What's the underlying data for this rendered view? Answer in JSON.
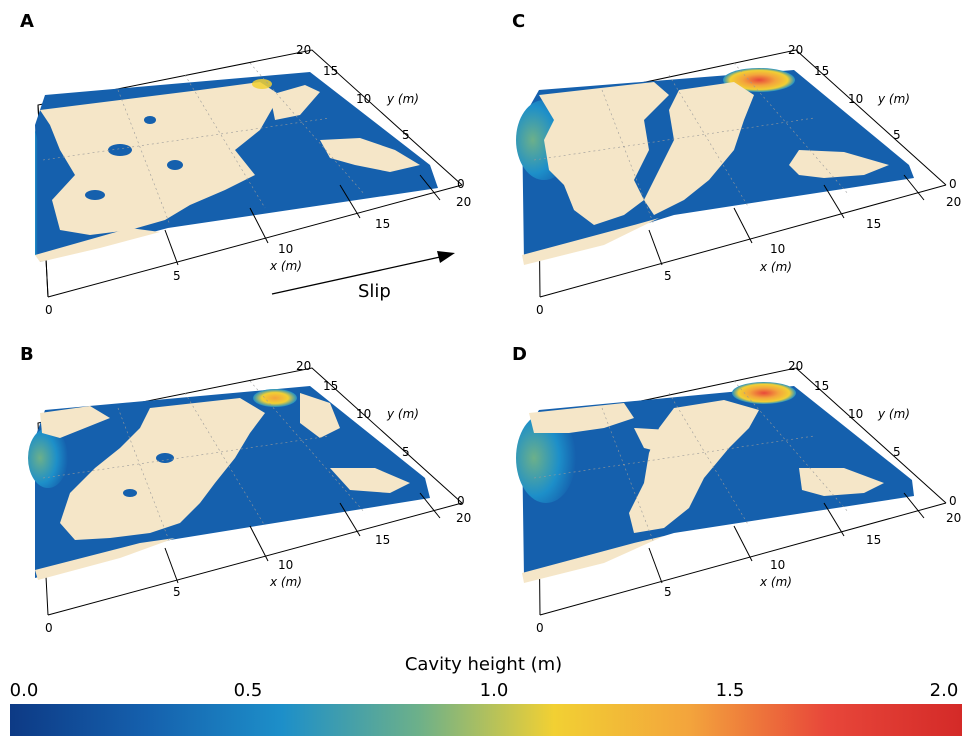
{
  "chart_data": {
    "type": "3d-surface",
    "colorbar": {
      "title": "Cavity height (m)",
      "range": [
        0.0,
        2.0
      ],
      "ticks": [
        "0.0",
        "0.5",
        "1.0",
        "1.5",
        "2.0"
      ],
      "colormap": [
        "#0d3a85",
        "#1560ad",
        "#1d8fc9",
        "#6cb08a",
        "#f2d033",
        "#f3a43c",
        "#e8473a",
        "#d42a28"
      ]
    },
    "contact_color": "#f5e6c8",
    "annotation": "Slip",
    "panels": [
      {
        "label": "A",
        "x_ticks": [
          "0",
          "5",
          "10",
          "15",
          "20"
        ],
        "y_ticks": [
          "0",
          "5",
          "10",
          "15",
          "20"
        ],
        "x_label": "x (m)",
        "y_label": "y (m)",
        "max_cavity_height": 1.4
      },
      {
        "label": "C",
        "x_ticks": [
          "0",
          "5",
          "10",
          "15",
          "20"
        ],
        "y_ticks": [
          "0",
          "5",
          "10",
          "15",
          "20"
        ],
        "x_label": "x (m)",
        "y_label": "y (m)",
        "max_cavity_height": 1.6
      },
      {
        "label": "B",
        "x_ticks": [
          "0",
          "5",
          "10",
          "15",
          "20"
        ],
        "y_ticks": [
          "0",
          "5",
          "10",
          "15",
          "20"
        ],
        "x_label": "x (m)",
        "y_label": "y (m)",
        "max_cavity_height": 1.4
      },
      {
        "label": "D",
        "x_ticks": [
          "0",
          "5",
          "10",
          "15",
          "20"
        ],
        "y_ticks": [
          "0",
          "5",
          "10",
          "15",
          "20"
        ],
        "x_label": "x (m)",
        "y_label": "y (m)",
        "max_cavity_height": 1.6
      }
    ]
  }
}
